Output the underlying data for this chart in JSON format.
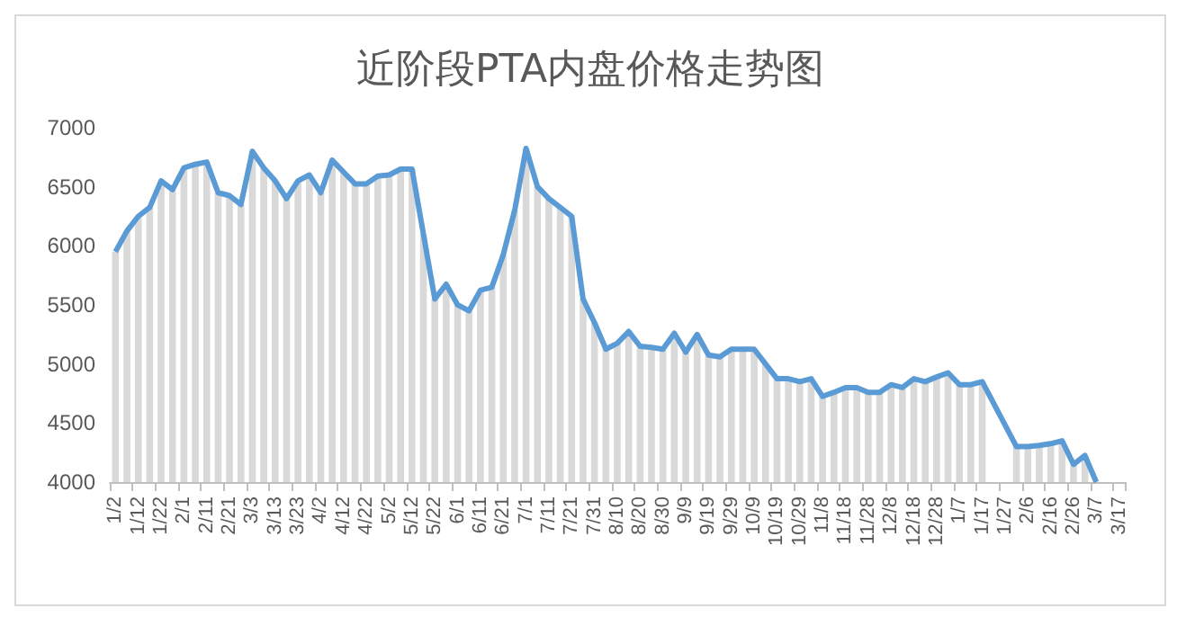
{
  "chart_data": {
    "type": "line",
    "title": "近阶段PTA内盘价格走势图",
    "categories": [
      "1/2",
      null,
      "1/12",
      null,
      "1/22",
      null,
      "2/1",
      null,
      "2/11",
      null,
      "2/21",
      null,
      "3/3",
      null,
      "3/13",
      null,
      "3/23",
      null,
      "4/2",
      null,
      "4/12",
      null,
      "4/22",
      null,
      "5/2",
      null,
      "5/12",
      null,
      "5/22",
      null,
      "6/1",
      null,
      "6/11",
      null,
      "6/21",
      null,
      "7/1",
      null,
      "7/11",
      null,
      "7/21",
      null,
      "7/31",
      null,
      "8/10",
      null,
      "8/20",
      null,
      "8/30",
      null,
      "9/9",
      null,
      "9/19",
      null,
      "9/29",
      null,
      "10/9",
      null,
      "10/19",
      null,
      "10/29",
      null,
      "11/8",
      null,
      "11/18",
      null,
      "11/28",
      null,
      "12/8",
      null,
      "12/18",
      null,
      "12/28",
      null,
      "1/7",
      null,
      "1/17",
      null,
      "1/27",
      null,
      "2/6",
      null,
      "2/16",
      null,
      "2/26",
      null,
      "3/7",
      null,
      "3/17"
    ],
    "series": [
      {
        "type": "bar",
        "color": "#d9d9d9",
        "values": [
          5950,
          6125,
          6250,
          6325,
          6550,
          6475,
          6660,
          6690,
          6710,
          6450,
          6425,
          6350,
          6800,
          6660,
          6550,
          6400,
          6550,
          6600,
          6450,
          6725,
          6625,
          6525,
          6525,
          6590,
          6600,
          6650,
          6650,
          6100,
          5550,
          5675,
          5500,
          5450,
          5625,
          5650,
          5925,
          6300,
          6825,
          6500,
          6400,
          6325,
          6250,
          5550,
          5350,
          5125,
          5175,
          5275,
          5150,
          5140,
          5125,
          5260,
          5100,
          5250,
          5075,
          5060,
          5125,
          5125,
          5125,
          5000,
          4875,
          4875,
          4850,
          4875,
          4725,
          4760,
          4800,
          4800,
          4760,
          4760,
          4825,
          4800,
          4875,
          4850,
          4890,
          4925,
          4825,
          4825,
          4850,
          null,
          null,
          4300,
          4300,
          4310,
          4325,
          4350,
          4150,
          4225,
          4000,
          null,
          null
        ]
      },
      {
        "color": "#5b9bd5",
        "values": [
          5950,
          6125,
          6250,
          6325,
          6550,
          6475,
          6660,
          6690,
          6710,
          6450,
          6425,
          6350,
          6800,
          6660,
          6550,
          6400,
          6550,
          6600,
          6450,
          6725,
          6625,
          6525,
          6525,
          6590,
          6600,
          6650,
          6650,
          6100,
          5550,
          5675,
          5500,
          5450,
          5625,
          5650,
          5925,
          6300,
          6825,
          6500,
          6400,
          6325,
          6250,
          5550,
          5350,
          5125,
          5175,
          5275,
          5150,
          5140,
          5125,
          5260,
          5100,
          5250,
          5075,
          5060,
          5125,
          5125,
          5125,
          5000,
          4875,
          4875,
          4850,
          4875,
          4725,
          4760,
          4800,
          4800,
          4760,
          4760,
          4825,
          4800,
          4875,
          4850,
          4890,
          4925,
          4825,
          4825,
          4850,
          null,
          null,
          4300,
          4300,
          4310,
          4325,
          4350,
          4150,
          4225,
          4000,
          null,
          null
        ]
      }
    ],
    "ylim": [
      4000,
      7000
    ],
    "yticks": [
      4000,
      4500,
      5000,
      5500,
      6000,
      6500,
      7000
    ],
    "grid": false,
    "marker": "none",
    "line_style": "solid"
  }
}
